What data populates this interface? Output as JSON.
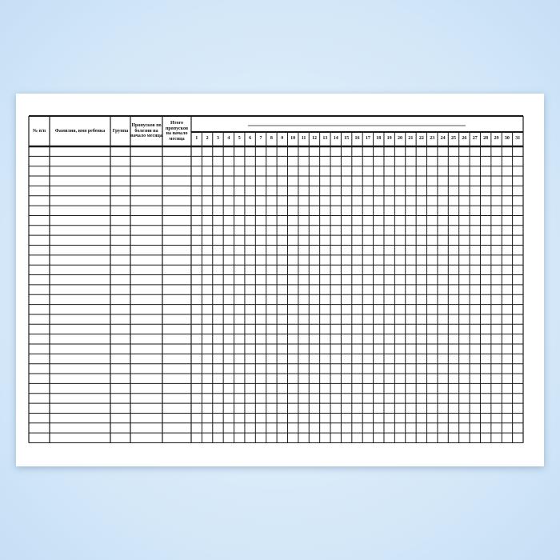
{
  "headers": {
    "number": "№ п/п",
    "name": "Фамилия, имя ребенка",
    "group": "Группа",
    "sick_absences": "Пропусков по болезни на начало месяца",
    "total_absences": "Итого пропусков на начало месяца"
  },
  "days": [
    "1",
    "2",
    "3",
    "4",
    "5",
    "6",
    "7",
    "8",
    "9",
    "10",
    "11",
    "12",
    "13",
    "14",
    "15",
    "16",
    "17",
    "18",
    "19",
    "20",
    "21",
    "22",
    "23",
    "24",
    "25",
    "26",
    "27",
    "28",
    "29",
    "30",
    "31"
  ],
  "row_count": 30
}
